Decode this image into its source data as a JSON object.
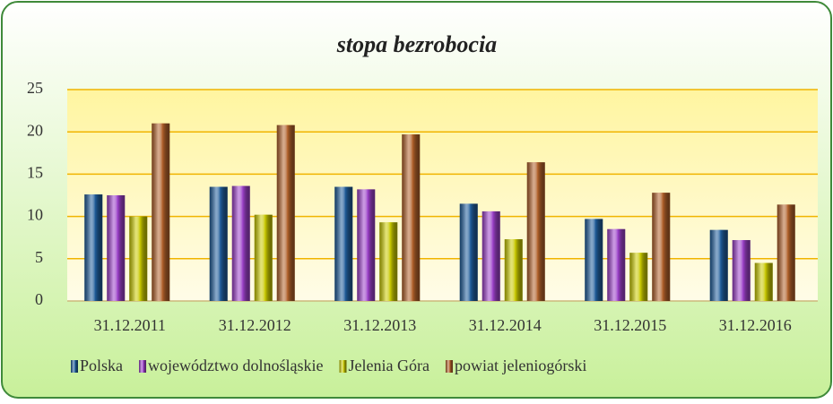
{
  "chart_data": {
    "type": "bar",
    "title": "stopa bezrobocia",
    "categories": [
      "31.12.2011",
      "31.12.2012",
      "31.12.2013",
      "31.12.2014",
      "31.12.2015",
      "31.12.2016"
    ],
    "series": [
      {
        "name": "Polska",
        "color": "#1f5c99",
        "values": [
          12.6,
          13.5,
          13.5,
          11.5,
          9.7,
          8.4
        ]
      },
      {
        "name": "województwo dolnośląskie",
        "color": "#9b40c8",
        "values": [
          12.5,
          13.6,
          13.2,
          10.6,
          8.5,
          7.2
        ]
      },
      {
        "name": "Jelenia Góra",
        "color": "#c8c800",
        "values": [
          10.0,
          10.2,
          9.3,
          7.3,
          5.7,
          4.5
        ]
      },
      {
        "name": "powiat jeleniogórski",
        "color": "#b0602a",
        "values": [
          21.0,
          20.8,
          19.7,
          16.4,
          12.8,
          11.4
        ]
      }
    ],
    "ylim": [
      0,
      25
    ],
    "yticks": [
      0,
      5,
      10,
      15,
      20,
      25
    ],
    "grid": true,
    "legend": "bottom"
  }
}
